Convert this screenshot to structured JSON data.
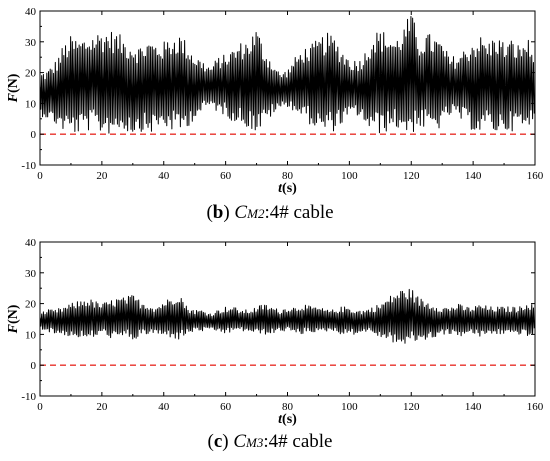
{
  "chart_data": [
    {
      "type": "line",
      "caption": {
        "open": "(",
        "letter": "b",
        "close": ")",
        "c": "C",
        "sub": "M2",
        "rest": ":4# cable"
      },
      "xlabel": {
        "var": "t",
        "unit": "(s)"
      },
      "ylabel": {
        "var": "F",
        "unit": "(N)"
      },
      "xlim": [
        0,
        160
      ],
      "ylim": [
        -10,
        40
      ],
      "xticks": [
        "0",
        "20",
        "40",
        "60",
        "80",
        "100",
        "120",
        "140",
        "160"
      ],
      "yticks": [
        "-10",
        "0",
        "10",
        "20",
        "30",
        "40"
      ],
      "reference_line": {
        "y": 0,
        "style": "dashed",
        "color": "#e8312a"
      },
      "series_color": "#000000",
      "series": [
        {
          "x": [
            0,
            2.5,
            5,
            7.5,
            10,
            12.5,
            15,
            17.5,
            20,
            22.5,
            25,
            27.5,
            30,
            32.5,
            35,
            37.5,
            40,
            42.5,
            45,
            47.5,
            50,
            52.5,
            55,
            57.5,
            60,
            62.5,
            65,
            67.5,
            70,
            72.5,
            75,
            77.5,
            80,
            82.5,
            85,
            87.5,
            90,
            92.5,
            95,
            97.5,
            100,
            102.5,
            105,
            107.5,
            110,
            112.5,
            115,
            117.5,
            120,
            122.5,
            125,
            127.5,
            130,
            132.5,
            135,
            137.5,
            140,
            142.5,
            145,
            147.5,
            150,
            152.5,
            155,
            157.5,
            160
          ],
          "envelope_max": [
            20,
            21,
            24,
            29,
            32,
            31,
            32,
            33,
            34,
            34,
            33,
            31,
            30,
            29,
            31,
            30,
            30,
            32,
            33,
            30,
            26,
            24,
            22,
            25,
            26,
            28,
            30,
            31,
            35,
            28,
            24,
            20,
            21,
            25,
            28,
            29,
            31,
            33,
            32,
            28,
            25,
            24,
            27,
            33,
            34,
            33,
            31,
            35,
            40,
            31,
            33,
            32,
            30,
            25,
            26,
            28,
            31,
            32,
            30,
            33,
            30,
            31,
            29,
            32,
            24
          ],
          "envelope_min": [
            6,
            5,
            3,
            1,
            0,
            0,
            1,
            1,
            0,
            0,
            1,
            1,
            0,
            1,
            0,
            1,
            2,
            1,
            0,
            2,
            5,
            7,
            9,
            7,
            6,
            4,
            3,
            2,
            0,
            3,
            6,
            8,
            9,
            7,
            5,
            3,
            1,
            0,
            1,
            3,
            5,
            6,
            3,
            0,
            0,
            1,
            2,
            0,
            0,
            2,
            1,
            1,
            2,
            6,
            5,
            3,
            1,
            0,
            2,
            0,
            1,
            1,
            2,
            0,
            6
          ]
        }
      ]
    },
    {
      "type": "line",
      "caption": {
        "open": "(",
        "letter": "c",
        "close": ")",
        "c": "C",
        "sub": "M3",
        "rest": ":4# cable"
      },
      "xlabel": {
        "var": "t",
        "unit": "(s)"
      },
      "ylabel": {
        "var": "F",
        "unit": "(N)"
      },
      "xlim": [
        0,
        160
      ],
      "ylim": [
        -10,
        40
      ],
      "xticks": [
        "0",
        "20",
        "40",
        "60",
        "80",
        "100",
        "120",
        "140",
        "160"
      ],
      "yticks": [
        "-10",
        "0",
        "10",
        "20",
        "30",
        "40"
      ],
      "reference_line": {
        "y": 0,
        "style": "dashed",
        "color": "#e8312a"
      },
      "series_color": "#000000",
      "series": [
        {
          "x": [
            0,
            2.5,
            5,
            7.5,
            10,
            12.5,
            15,
            17.5,
            20,
            22.5,
            25,
            27.5,
            30,
            32.5,
            35,
            37.5,
            40,
            42.5,
            45,
            47.5,
            50,
            52.5,
            55,
            57.5,
            60,
            62.5,
            65,
            67.5,
            70,
            72.5,
            75,
            77.5,
            80,
            82.5,
            85,
            87.5,
            90,
            92.5,
            95,
            97.5,
            100,
            102.5,
            105,
            107.5,
            110,
            112.5,
            115,
            117.5,
            120,
            122.5,
            125,
            127.5,
            130,
            132.5,
            135,
            137.5,
            140,
            142.5,
            145,
            147.5,
            150,
            152.5,
            155,
            157.5,
            160
          ],
          "envelope_max": [
            17,
            18,
            18,
            19,
            20,
            21,
            22,
            21,
            20,
            21,
            22,
            22,
            23,
            21,
            20,
            19,
            21,
            22,
            24,
            19,
            18,
            18,
            17,
            18,
            19,
            19,
            18,
            18,
            19,
            20,
            19,
            18,
            19,
            19,
            20,
            19,
            19,
            18,
            18,
            19,
            19,
            18,
            18,
            19,
            20,
            22,
            24,
            25,
            25,
            22,
            21,
            20,
            19,
            19,
            20,
            19,
            19,
            20,
            19,
            19,
            19,
            19,
            19,
            21,
            19
          ],
          "envelope_min": [
            12,
            11,
            10,
            10,
            9,
            9,
            8,
            9,
            10,
            9,
            8,
            9,
            8,
            9,
            10,
            10,
            9,
            9,
            8,
            10,
            11,
            11,
            11,
            11,
            10,
            11,
            11,
            11,
            10,
            10,
            10,
            11,
            11,
            10,
            10,
            11,
            10,
            11,
            11,
            10,
            10,
            10,
            11,
            10,
            9,
            8,
            7,
            6,
            7,
            8,
            8,
            9,
            10,
            10,
            9,
            10,
            10,
            9,
            10,
            10,
            10,
            10,
            10,
            9,
            10
          ]
        }
      ]
    }
  ]
}
